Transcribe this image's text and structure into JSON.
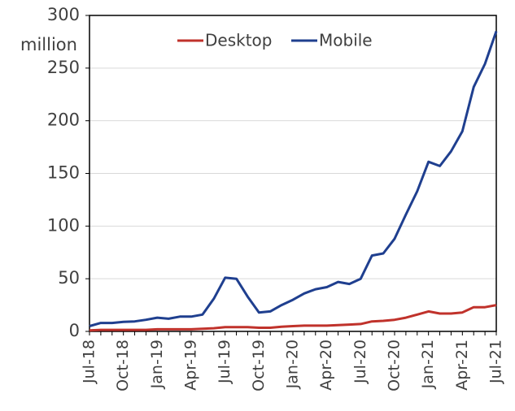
{
  "chart_data": {
    "type": "line",
    "y_label": "million",
    "categories": [
      "Jul-18",
      null,
      null,
      "Oct-18",
      null,
      null,
      "Jan-19",
      null,
      null,
      "Apr-19",
      null,
      null,
      "Jul-19",
      null,
      null,
      "Oct-19",
      null,
      null,
      "Jan-20",
      null,
      null,
      "Apr-20",
      null,
      null,
      "Jul-20",
      null,
      null,
      "Oct-20",
      null,
      null,
      "Jan-21",
      null,
      null,
      "Apr-21",
      null,
      null,
      "Jul-21"
    ],
    "series": [
      {
        "name": "Desktop",
        "color": "#c0322b",
        "values": [
          1,
          1.5,
          1.5,
          1.5,
          1.5,
          1.5,
          2,
          2,
          2,
          2,
          2.5,
          3,
          4,
          4,
          4,
          3.5,
          3.5,
          4.5,
          5,
          5.5,
          5.5,
          5.5,
          6,
          6.5,
          7,
          9.5,
          10,
          11,
          13,
          16,
          19,
          17,
          17,
          18,
          23,
          23,
          25
        ]
      },
      {
        "name": "Mobile",
        "color": "#1f3f8f",
        "values": [
          5,
          8,
          8,
          9,
          9.5,
          11,
          13,
          12,
          14,
          14,
          16,
          31,
          51,
          50,
          33,
          18,
          19,
          25,
          30,
          36,
          40,
          42,
          47,
          45,
          50,
          72,
          74,
          88,
          111,
          133,
          161,
          157,
          171,
          190,
          232,
          254,
          285
        ]
      }
    ],
    "ylim": [
      0,
      300
    ],
    "yticks": [
      0,
      50,
      100,
      150,
      200,
      250,
      300
    ],
    "grid": true,
    "legend": "top"
  }
}
